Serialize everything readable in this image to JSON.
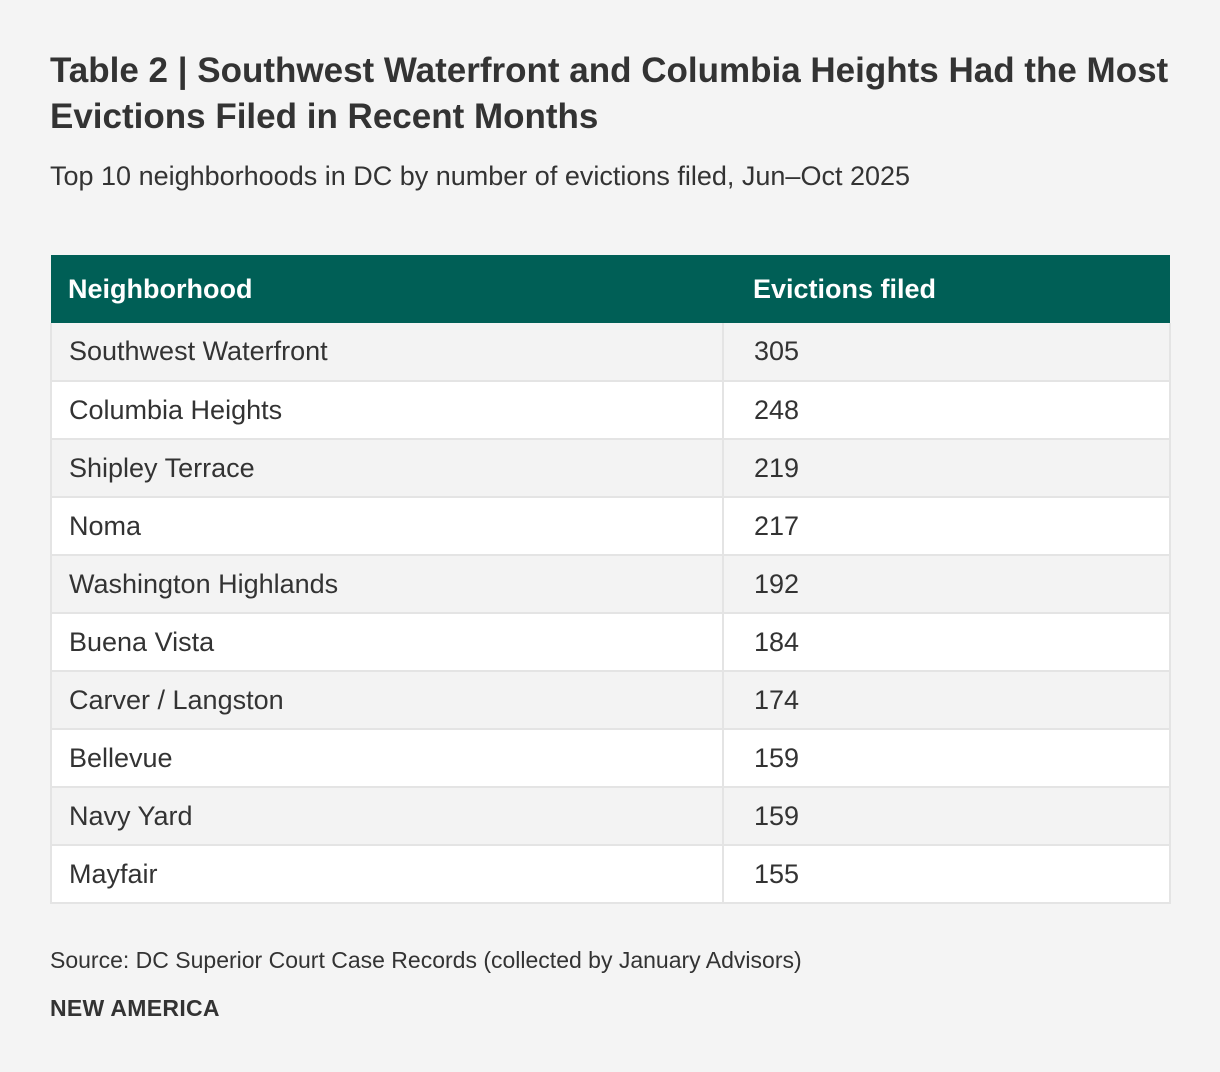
{
  "title": "Table 2 | Southwest Waterfront and Columbia Heights Had the Most Evictions Filed in Recent Months",
  "subtitle": "Top 10 neighborhoods in DC by number of evictions filed, Jun–Oct 2025",
  "source": "Source: DC Superior Court Case Records (collected by January Advisors)",
  "brand": "NEW AMERICA",
  "colors": {
    "header_bg": "#005f56",
    "header_text": "#ffffff",
    "row_odd": "#f3f3f3",
    "row_even": "#ffffff"
  },
  "chart_data": {
    "type": "table",
    "columns": [
      "Neighborhood",
      "Evictions filed"
    ],
    "rows": [
      [
        "Southwest Waterfront",
        "305"
      ],
      [
        "Columbia Heights",
        "248"
      ],
      [
        "Shipley Terrace",
        "219"
      ],
      [
        "Noma",
        "217"
      ],
      [
        "Washington Highlands",
        "192"
      ],
      [
        "Buena Vista",
        "184"
      ],
      [
        "Carver / Langston",
        "174"
      ],
      [
        "Bellevue",
        "159"
      ],
      [
        "Navy Yard",
        "159"
      ],
      [
        "Mayfair",
        "155"
      ]
    ]
  }
}
